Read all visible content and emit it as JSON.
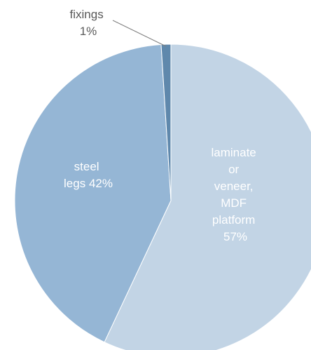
{
  "chart_data": {
    "type": "pie",
    "title": "",
    "legend": "none",
    "slices": [
      {
        "name": "laminate or veneer, MDF platform",
        "value": 57,
        "color": "#c2d4e5",
        "label_lines": [
          "laminate",
          "or",
          "veneer,",
          "MDF",
          "platform",
          "57%"
        ]
      },
      {
        "name": "steel legs",
        "value": 42,
        "color": "#95b6d5",
        "label_lines": [
          "steel",
          "legs 42%"
        ]
      },
      {
        "name": "fixings",
        "value": 1,
        "color": "#5f88ac",
        "label_lines": [
          "fixings",
          "1%"
        ]
      }
    ]
  }
}
